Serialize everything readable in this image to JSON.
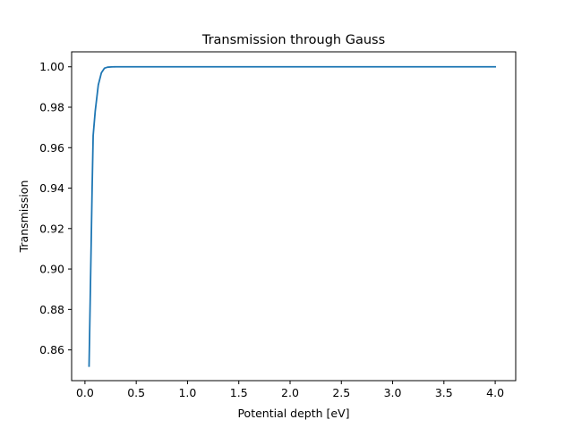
{
  "chart_data": {
    "type": "line",
    "title": "Transmission through Gauss",
    "xlabel": "Potential depth [eV]",
    "ylabel": "Transmission",
    "xlim": [
      -0.13,
      4.2
    ],
    "ylim": [
      0.8448,
      1.0074
    ],
    "xticks": [
      0.0,
      0.5,
      1.0,
      1.5,
      2.0,
      2.5,
      3.0,
      3.5,
      4.0
    ],
    "xtick_labels": [
      "0.0",
      "0.5",
      "1.0",
      "1.5",
      "2.0",
      "2.5",
      "3.0",
      "3.5",
      "4.0"
    ],
    "yticks": [
      0.86,
      0.88,
      0.9,
      0.92,
      0.94,
      0.96,
      0.98,
      1.0
    ],
    "ytick_labels": [
      "0.86",
      "0.88",
      "0.90",
      "0.92",
      "0.94",
      "0.96",
      "0.98",
      "1.00"
    ],
    "grid": false,
    "series": [
      {
        "color": "#1f77b4",
        "x": [
          0.04,
          0.07,
          0.08,
          0.1,
          0.13,
          0.16,
          0.19,
          0.22,
          0.26,
          0.3,
          0.4,
          0.5,
          0.6,
          0.8,
          1.0,
          1.5,
          2.0,
          2.5,
          3.0,
          3.5,
          4.0
        ],
        "y": [
          0.852,
          0.94,
          0.966,
          0.978,
          0.991,
          0.997,
          0.9993,
          0.9998,
          0.99995,
          1.0,
          1.0,
          1.0,
          1.0,
          1.0,
          1.0,
          1.0,
          1.0,
          1.0,
          1.0,
          1.0,
          1.0
        ]
      }
    ]
  }
}
